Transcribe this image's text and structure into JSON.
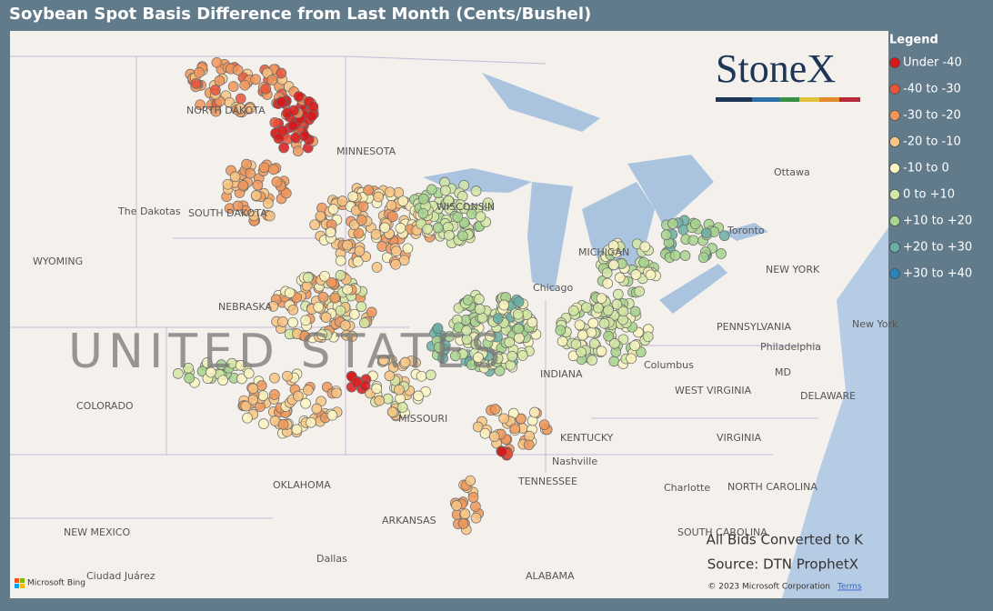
{
  "title": "Soybean Spot Basis Difference from Last Month (Cents/Bushel)",
  "logo": "StoneX",
  "legend": {
    "title": "Legend",
    "items": [
      {
        "label": "Under -40",
        "color": "#d7191c"
      },
      {
        "label": "-40 to -30",
        "color": "#e8553a"
      },
      {
        "label": "-30 to -20",
        "color": "#f0965a"
      },
      {
        "label": "-20 to -10",
        "color": "#f8c483"
      },
      {
        "label": "-10 to 0",
        "color": "#fbf4c0"
      },
      {
        "label": "0 to +10",
        "color": "#d3e8a5"
      },
      {
        "label": "+10 to +20",
        "color": "#a7d48e"
      },
      {
        "label": "+20 to +30",
        "color": "#6aaea4"
      },
      {
        "label": "+30 to +40",
        "color": "#2b83ba"
      }
    ]
  },
  "notes": [
    "All Bids Converted to K",
    "Source: DTN ProphetX"
  ],
  "map_labels": [
    "NORTH DAKOTA",
    "MINNESOTA",
    "The Dakotas",
    "SOUTH DAKOTA",
    "WYOMING",
    "NEBRASKA",
    "UNITED STATES",
    "COLORADO",
    "MISSOURI",
    "KENTUCKY",
    "OKLAHOMA",
    "NEW MEXICO",
    "ARKANSAS",
    "TENNESSEE",
    "Nashville",
    "ALABAMA",
    "Dallas",
    "Ciudad Juárez",
    "Chicago",
    "Columbus",
    "INDIANA",
    "WISCONSIN",
    "MICHIGAN",
    "Ottawa",
    "Toronto",
    "NEW YORK",
    "PENNSYLVANIA",
    "Philadelphia",
    "New York",
    "MD",
    "DELAWARE",
    "WEST VIRGINIA",
    "VIRGINIA",
    "NORTH CAROLINA",
    "SOUTH CAROLINA",
    "Charlotte"
  ],
  "attribution": {
    "copyright": "© 2023 Microsoft Corporation",
    "terms": "Terms",
    "bing": "Microsoft Bing"
  }
}
